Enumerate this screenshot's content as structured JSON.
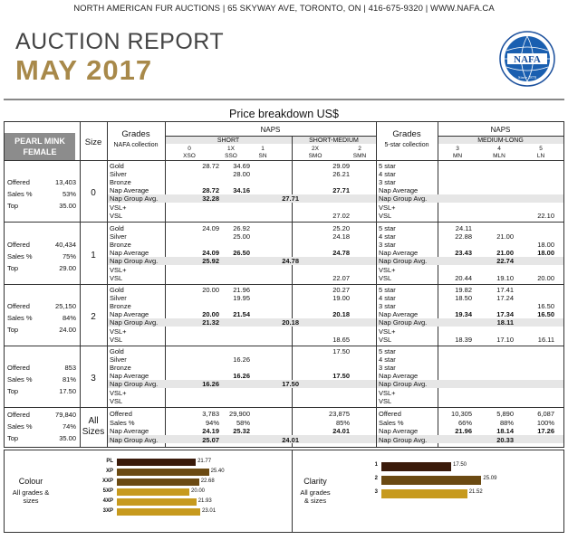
{
  "header": {
    "address": "NORTH AMERICAN FUR AUCTIONS | 65 SKYWAY AVE, TORONTO, ON | 416-675-9320 | WWW.NAFA.CA",
    "title": "AUCTION REPORT",
    "month": "MAY 2017",
    "logo_text": "NAFA",
    "logo_since": "Since 1870",
    "subtitle": "Price breakdown US$"
  },
  "colors": {
    "gold": "#a8894a",
    "bar_dark": "#3a1a0a",
    "bar_mid": "#6b4a12",
    "bar_light": "#c79a1e"
  },
  "table": {
    "mink_label_1": "PEARL MINK",
    "mink_label_2": "FEMALE",
    "size_label": "Size",
    "grades_label": "Grades",
    "grades_sub": "NAFA collection",
    "naps_label": "NAPS",
    "short_label": "SHORT",
    "shortmed_label": "SHORT-MEDIUM",
    "grades2_label": "Grades",
    "grades2_sub": "5-star collection",
    "naps2_label": "NAPS",
    "medlong_label": "MEDIUM-LONG",
    "cols_left": [
      {
        "num": "0",
        "code": "XSO"
      },
      {
        "num": "1X",
        "code": "SSO"
      },
      {
        "num": "1",
        "code": "SN"
      },
      {
        "num": "2X",
        "code": "SMO"
      },
      {
        "num": "2",
        "code": "SMN"
      }
    ],
    "cols_right": [
      {
        "num": "3",
        "code": "MN"
      },
      {
        "num": "4",
        "code": "MLN"
      },
      {
        "num": "5",
        "code": "LN"
      }
    ],
    "grade_names": [
      "Gold",
      "Silver",
      "Bronze",
      "Nap Average",
      "Nap Group Avg.",
      "VSL+",
      "VSL"
    ],
    "star_names": [
      "5 star",
      "4 star",
      "3 star",
      "Nap Average",
      "Nap Group Avg.",
      "VSL+",
      "VSL"
    ],
    "side_labels": [
      "Offered",
      "Sales %",
      "Top"
    ],
    "sizes": [
      {
        "size": "0",
        "offered": "13,403",
        "sales": "53%",
        "top": "35.00",
        "left": [
          [
            "",
            "28.72",
            "34.69",
            "",
            "29.09"
          ],
          [
            "",
            "",
            "28.00",
            "",
            "26.21"
          ],
          [
            "",
            "",
            "",
            "",
            ""
          ],
          [
            "",
            "28.72",
            "34.16",
            "",
            "27.71"
          ],
          [
            "",
            "32.28",
            "",
            "27.71",
            ""
          ],
          [
            "",
            "",
            "",
            "",
            ""
          ],
          [
            "",
            "",
            "",
            "",
            "27.02"
          ]
        ],
        "right": [
          [
            "",
            "",
            ""
          ],
          [
            "",
            "",
            ""
          ],
          [
            "",
            "",
            ""
          ],
          [
            "",
            "",
            ""
          ],
          [
            "",
            "",
            ""
          ],
          [
            "",
            "",
            ""
          ],
          [
            "",
            "",
            "22.10"
          ]
        ]
      },
      {
        "size": "1",
        "offered": "40,434",
        "sales": "75%",
        "top": "29.00",
        "left": [
          [
            "",
            "24.09",
            "26.92",
            "",
            "25.20"
          ],
          [
            "",
            "",
            "25.00",
            "",
            "24.18"
          ],
          [
            "",
            "",
            "",
            "",
            ""
          ],
          [
            "",
            "24.09",
            "26.50",
            "",
            "24.78"
          ],
          [
            "",
            "25.92",
            "",
            "24.78",
            ""
          ],
          [
            "",
            "",
            "",
            "",
            ""
          ],
          [
            "",
            "",
            "",
            "",
            "22.07"
          ]
        ],
        "right": [
          [
            "24.11",
            "",
            ""
          ],
          [
            "22.88",
            "21.00",
            ""
          ],
          [
            "",
            "",
            "18.00"
          ],
          [
            "23.43",
            "21.00",
            "18.00"
          ],
          [
            "",
            "22.74",
            ""
          ],
          [
            "",
            "",
            ""
          ],
          [
            "20.44",
            "19.10",
            "20.00"
          ]
        ]
      },
      {
        "size": "2",
        "offered": "25,150",
        "sales": "84%",
        "top": "24.00",
        "left": [
          [
            "",
            "20.00",
            "21.96",
            "",
            "20.27"
          ],
          [
            "",
            "",
            "19.95",
            "",
            "19.00"
          ],
          [
            "",
            "",
            "",
            "",
            ""
          ],
          [
            "",
            "20.00",
            "21.54",
            "",
            "20.18"
          ],
          [
            "",
            "21.32",
            "",
            "20.18",
            ""
          ],
          [
            "",
            "",
            "",
            "",
            ""
          ],
          [
            "",
            "",
            "",
            "",
            "18.65"
          ]
        ],
        "right": [
          [
            "19.82",
            "17.41",
            ""
          ],
          [
            "18.50",
            "17.24",
            ""
          ],
          [
            "",
            "",
            "16.50"
          ],
          [
            "19.34",
            "17.34",
            "16.50"
          ],
          [
            "",
            "18.11",
            ""
          ],
          [
            "",
            "",
            ""
          ],
          [
            "18.39",
            "17.10",
            "16.11"
          ]
        ]
      },
      {
        "size": "3",
        "offered": "853",
        "sales": "81%",
        "top": "17.50",
        "left": [
          [
            "",
            "",
            "",
            "",
            "17.50"
          ],
          [
            "",
            "",
            "16.26",
            "",
            ""
          ],
          [
            "",
            "",
            "",
            "",
            ""
          ],
          [
            "",
            "",
            "16.26",
            "",
            "17.50"
          ],
          [
            "",
            "16.26",
            "",
            "17.50",
            ""
          ],
          [
            "",
            "",
            "",
            "",
            ""
          ],
          [
            "",
            "",
            "",
            "",
            ""
          ]
        ],
        "right": [
          [
            "",
            "",
            ""
          ],
          [
            "",
            "",
            ""
          ],
          [
            "",
            "",
            ""
          ],
          [
            "",
            "",
            ""
          ],
          [
            "",
            "",
            ""
          ],
          [
            "",
            "",
            ""
          ],
          [
            "",
            "",
            ""
          ]
        ]
      }
    ],
    "all": {
      "size_line1": "All",
      "size_line2": "Sizes",
      "offered": "79,840",
      "sales": "74%",
      "top": "35.00",
      "row_names": [
        "Offered",
        "Sales %",
        "Nap Average",
        "Nap Group Avg."
      ],
      "left": [
        [
          "",
          "3,783",
          "29,900",
          "",
          "23,875"
        ],
        [
          "",
          "94%",
          "58%",
          "",
          "85%"
        ],
        [
          "",
          "24.19",
          "25.32",
          "",
          "24.01"
        ],
        [
          "",
          "25.07",
          "",
          "24.01",
          ""
        ]
      ],
      "right": [
        [
          "10,305",
          "5,890",
          "6,087"
        ],
        [
          "66%",
          "88%",
          "100%"
        ],
        [
          "21.96",
          "18.14",
          "17.26"
        ],
        [
          "",
          "20.33",
          ""
        ]
      ]
    }
  },
  "colour_chart": {
    "title": "Colour",
    "sub1": "All grades &",
    "sub2": "sizes",
    "type": "bar",
    "categories": [
      "PL",
      "XP",
      "XXP",
      "5XP",
      "4XP",
      "3XP"
    ],
    "values": [
      21.77,
      25.4,
      22.68,
      20.0,
      21.93,
      23.01
    ],
    "labels": [
      "21.77",
      "25.40",
      "22.68",
      "20.00",
      "21.93",
      "23.01"
    ]
  },
  "clarity_chart": {
    "title": "Clarity",
    "sub1": "All grades",
    "sub2": "& sizes",
    "type": "bar",
    "categories": [
      "1",
      "2",
      "3"
    ],
    "values": [
      17.5,
      25.09,
      21.52
    ],
    "labels": [
      "17.50",
      "25.09",
      "21.52"
    ]
  },
  "chart_data": [
    {
      "type": "bar",
      "title": "Colour",
      "categories": [
        "PL",
        "XP",
        "XXP",
        "5XP",
        "4XP",
        "3XP"
      ],
      "values": [
        21.77,
        25.4,
        22.68,
        20.0,
        21.93,
        23.01
      ]
    },
    {
      "type": "bar",
      "title": "Clarity",
      "categories": [
        "1",
        "2",
        "3"
      ],
      "values": [
        17.5,
        25.09,
        21.52
      ]
    }
  ]
}
